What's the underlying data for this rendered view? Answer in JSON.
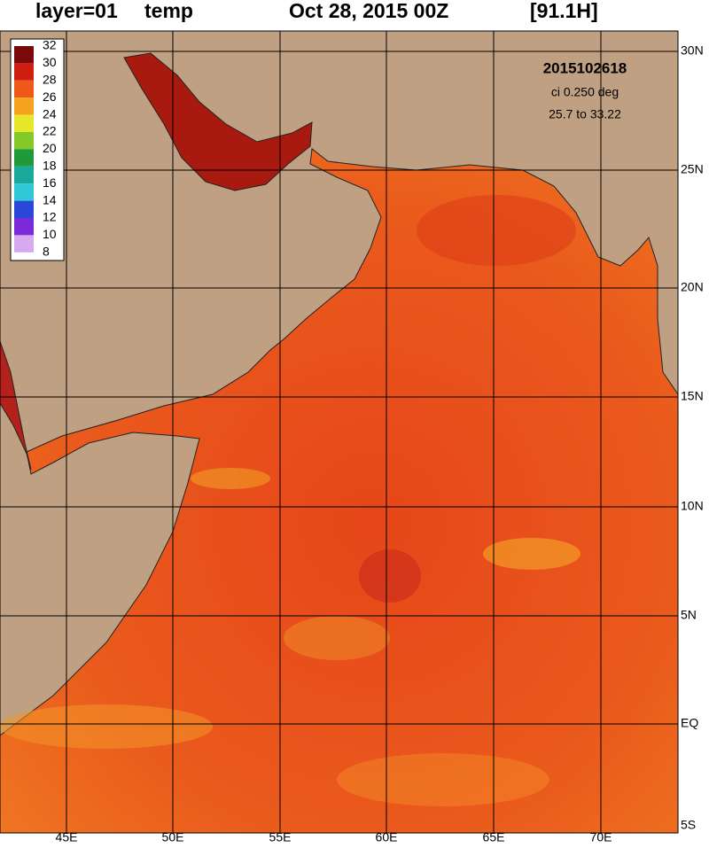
{
  "header": {
    "layer": "layer=01",
    "field": "temp",
    "date": "Oct 28, 2015 00Z",
    "forecast": "[91.1H]"
  },
  "annotations": {
    "run": "2015102618",
    "interval": "ci 0.250 deg",
    "range": "25.7 to 33.22"
  },
  "colorbar": {
    "labels": [
      32,
      30,
      28,
      26,
      24,
      22,
      20,
      18,
      16,
      14,
      12,
      10,
      8
    ]
  },
  "longitude_labels": [
    "45E",
    "50E",
    "55E",
    "60E",
    "65E",
    "70E"
  ],
  "latitude_labels": [
    "30N",
    "25N",
    "20N",
    "15N",
    "10N",
    "5N",
    "EQ",
    "5S"
  ]
}
